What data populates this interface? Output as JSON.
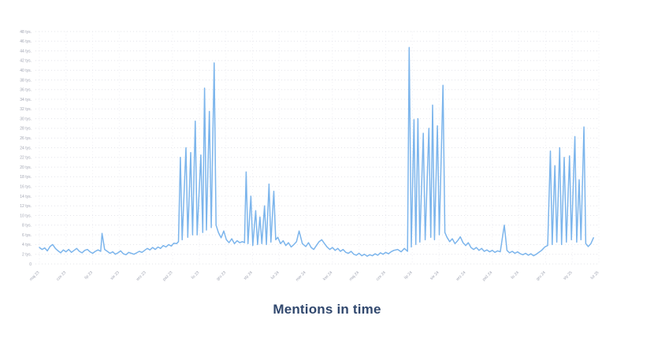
{
  "page": {
    "background": "#ffffff"
  },
  "title": {
    "text": "Mentions in time",
    "color": "#31486e"
  },
  "chart_data": {
    "type": "line",
    "title": "Mentions in time",
    "unit_suffix": " tys.",
    "line_color": "#7cb5ec",
    "grid": true,
    "legend": "none",
    "ylim": [
      0,
      48
    ],
    "y_tick_step": 2,
    "y_tick_labels": [
      "0",
      "2 tys.",
      "4 tys.",
      "6 tys.",
      "8 tys.",
      "10 tys.",
      "12 tys.",
      "14 tys.",
      "16 tys.",
      "18 tys.",
      "20 tys.",
      "22 tys.",
      "24 tys.",
      "26 tys.",
      "28 tys.",
      "30 tys.",
      "32 tys.",
      "34 tys.",
      "36 tys.",
      "38 tys.",
      "40 tys.",
      "42 tys.",
      "44 tys.",
      "46 tys.",
      "48 tys."
    ],
    "x_tick_labels": [
      "maj 23",
      "cze 23",
      "lip 23",
      "sie 23",
      "wrz 23",
      "paź 23",
      "lis 23",
      "gru 23",
      "sty 24",
      "lut 24",
      "mar 24",
      "kwi 24",
      "maj 24",
      "cze 24",
      "lip 24",
      "sie 24",
      "wrz 24",
      "paź 24",
      "lis 24",
      "gru 24",
      "sty 25",
      "lut 25"
    ],
    "x_unit": "month_index_from_first_label",
    "y_unit": "thousands_of_mentions",
    "points": [
      [
        0,
        3.4
      ],
      [
        0.1,
        3.0
      ],
      [
        0.2,
        3.3
      ],
      [
        0.3,
        2.7
      ],
      [
        0.4,
        3.6
      ],
      [
        0.5,
        4.0
      ],
      [
        0.6,
        3.2
      ],
      [
        0.7,
        2.7
      ],
      [
        0.8,
        2.3
      ],
      [
        0.9,
        2.9
      ],
      [
        1.0,
        2.5
      ],
      [
        1.1,
        3.0
      ],
      [
        1.2,
        2.4
      ],
      [
        1.3,
        2.8
      ],
      [
        1.4,
        3.2
      ],
      [
        1.5,
        2.6
      ],
      [
        1.6,
        2.3
      ],
      [
        1.7,
        2.8
      ],
      [
        1.8,
        3.0
      ],
      [
        1.9,
        2.5
      ],
      [
        2.0,
        2.2
      ],
      [
        2.1,
        2.6
      ],
      [
        2.2,
        2.9
      ],
      [
        2.3,
        2.6
      ],
      [
        2.35,
        6.3
      ],
      [
        2.45,
        3.0
      ],
      [
        2.55,
        2.6
      ],
      [
        2.65,
        2.2
      ],
      [
        2.75,
        2.5
      ],
      [
        2.85,
        2.0
      ],
      [
        2.95,
        2.3
      ],
      [
        3.05,
        2.7
      ],
      [
        3.15,
        2.1
      ],
      [
        3.25,
        1.9
      ],
      [
        3.35,
        2.4
      ],
      [
        3.45,
        2.2
      ],
      [
        3.55,
        2.0
      ],
      [
        3.65,
        2.3
      ],
      [
        3.75,
        2.6
      ],
      [
        3.85,
        2.4
      ],
      [
        3.95,
        2.8
      ],
      [
        4.05,
        3.2
      ],
      [
        4.15,
        2.9
      ],
      [
        4.25,
        3.4
      ],
      [
        4.35,
        3.0
      ],
      [
        4.45,
        3.5
      ],
      [
        4.55,
        3.2
      ],
      [
        4.65,
        3.8
      ],
      [
        4.75,
        3.5
      ],
      [
        4.85,
        4.0
      ],
      [
        4.95,
        3.7
      ],
      [
        5.05,
        4.3
      ],
      [
        5.15,
        4.2
      ],
      [
        5.22,
        4.6
      ],
      [
        5.29,
        22.0
      ],
      [
        5.36,
        5.0
      ],
      [
        5.5,
        24.0
      ],
      [
        5.57,
        5.5
      ],
      [
        5.68,
        23.0
      ],
      [
        5.75,
        6.0
      ],
      [
        5.85,
        29.5
      ],
      [
        5.92,
        6.0
      ],
      [
        6.06,
        22.5
      ],
      [
        6.13,
        6.5
      ],
      [
        6.2,
        36.3
      ],
      [
        6.27,
        7.0
      ],
      [
        6.38,
        31.5
      ],
      [
        6.45,
        7.5
      ],
      [
        6.56,
        41.5
      ],
      [
        6.63,
        8.0
      ],
      [
        6.72,
        6.5
      ],
      [
        6.82,
        5.4
      ],
      [
        6.92,
        6.8
      ],
      [
        7.02,
        5.0
      ],
      [
        7.12,
        4.4
      ],
      [
        7.22,
        5.2
      ],
      [
        7.32,
        4.2
      ],
      [
        7.42,
        4.8
      ],
      [
        7.52,
        4.4
      ],
      [
        7.62,
        4.6
      ],
      [
        7.7,
        4.4
      ],
      [
        7.76,
        19.0
      ],
      [
        7.83,
        4.2
      ],
      [
        7.94,
        14.0
      ],
      [
        8.01,
        3.8
      ],
      [
        8.12,
        11.0
      ],
      [
        8.19,
        4.0
      ],
      [
        8.28,
        9.7
      ],
      [
        8.35,
        4.2
      ],
      [
        8.45,
        12.0
      ],
      [
        8.52,
        4.0
      ],
      [
        8.62,
        16.5
      ],
      [
        8.69,
        4.5
      ],
      [
        8.8,
        15.0
      ],
      [
        8.87,
        5.0
      ],
      [
        8.95,
        5.5
      ],
      [
        9.05,
        4.2
      ],
      [
        9.15,
        4.8
      ],
      [
        9.25,
        3.8
      ],
      [
        9.35,
        4.4
      ],
      [
        9.45,
        3.5
      ],
      [
        9.55,
        4.0
      ],
      [
        9.65,
        4.6
      ],
      [
        9.75,
        6.8
      ],
      [
        9.87,
        4.2
      ],
      [
        10.0,
        3.6
      ],
      [
        10.1,
        4.4
      ],
      [
        10.2,
        3.4
      ],
      [
        10.3,
        3.0
      ],
      [
        10.4,
        3.8
      ],
      [
        10.5,
        4.6
      ],
      [
        10.6,
        5.0
      ],
      [
        10.7,
        4.2
      ],
      [
        10.8,
        3.5
      ],
      [
        10.9,
        3.0
      ],
      [
        11.0,
        3.4
      ],
      [
        11.1,
        2.8
      ],
      [
        11.2,
        3.2
      ],
      [
        11.3,
        2.6
      ],
      [
        11.4,
        3.0
      ],
      [
        11.5,
        2.4
      ],
      [
        11.6,
        2.2
      ],
      [
        11.7,
        2.6
      ],
      [
        11.8,
        2.0
      ],
      [
        11.9,
        1.8
      ],
      [
        12.0,
        2.2
      ],
      [
        12.1,
        1.7
      ],
      [
        12.2,
        2.0
      ],
      [
        12.3,
        1.6
      ],
      [
        12.4,
        1.9
      ],
      [
        12.5,
        1.7
      ],
      [
        12.6,
        2.1
      ],
      [
        12.7,
        1.8
      ],
      [
        12.8,
        2.3
      ],
      [
        12.9,
        2.0
      ],
      [
        13.0,
        2.4
      ],
      [
        13.1,
        2.1
      ],
      [
        13.2,
        2.5
      ],
      [
        13.3,
        2.8
      ],
      [
        13.45,
        3.0
      ],
      [
        13.58,
        2.5
      ],
      [
        13.7,
        3.2
      ],
      [
        13.82,
        2.6
      ],
      [
        13.88,
        44.7
      ],
      [
        13.96,
        3.5
      ],
      [
        14.06,
        29.8
      ],
      [
        14.13,
        4.0
      ],
      [
        14.21,
        30.0
      ],
      [
        14.28,
        4.5
      ],
      [
        14.41,
        27.0
      ],
      [
        14.48,
        5.0
      ],
      [
        14.62,
        28.0
      ],
      [
        14.69,
        5.5
      ],
      [
        14.76,
        32.8
      ],
      [
        14.83,
        5.0
      ],
      [
        14.94,
        28.5
      ],
      [
        15.01,
        6.0
      ],
      [
        15.15,
        36.9
      ],
      [
        15.22,
        6.5
      ],
      [
        15.3,
        5.5
      ],
      [
        15.4,
        4.6
      ],
      [
        15.5,
        5.2
      ],
      [
        15.6,
        4.2
      ],
      [
        15.7,
        4.8
      ],
      [
        15.8,
        5.6
      ],
      [
        15.9,
        4.4
      ],
      [
        16.0,
        3.8
      ],
      [
        16.1,
        4.4
      ],
      [
        16.2,
        3.4
      ],
      [
        16.3,
        3.0
      ],
      [
        16.4,
        3.4
      ],
      [
        16.5,
        2.8
      ],
      [
        16.6,
        3.2
      ],
      [
        16.7,
        2.6
      ],
      [
        16.8,
        2.9
      ],
      [
        16.9,
        2.5
      ],
      [
        17.0,
        2.8
      ],
      [
        17.1,
        2.4
      ],
      [
        17.2,
        2.7
      ],
      [
        17.3,
        2.5
      ],
      [
        17.45,
        8.0
      ],
      [
        17.55,
        2.8
      ],
      [
        17.65,
        2.3
      ],
      [
        17.75,
        2.6
      ],
      [
        17.85,
        2.2
      ],
      [
        17.95,
        2.5
      ],
      [
        18.05,
        2.1
      ],
      [
        18.15,
        1.9
      ],
      [
        18.25,
        2.2
      ],
      [
        18.35,
        1.8
      ],
      [
        18.45,
        2.1
      ],
      [
        18.55,
        1.7
      ],
      [
        18.65,
        2.0
      ],
      [
        18.75,
        2.4
      ],
      [
        18.85,
        2.8
      ],
      [
        18.97,
        3.5
      ],
      [
        19.08,
        3.8
      ],
      [
        19.18,
        23.3
      ],
      [
        19.25,
        4.0
      ],
      [
        19.35,
        20.3
      ],
      [
        19.42,
        4.5
      ],
      [
        19.53,
        24.0
      ],
      [
        19.6,
        4.0
      ],
      [
        19.7,
        22.0
      ],
      [
        19.78,
        4.5
      ],
      [
        19.9,
        22.3
      ],
      [
        19.97,
        5.0
      ],
      [
        20.1,
        26.3
      ],
      [
        20.17,
        4.5
      ],
      [
        20.26,
        17.4
      ],
      [
        20.33,
        5.0
      ],
      [
        20.44,
        28.3
      ],
      [
        20.51,
        4.2
      ],
      [
        20.6,
        3.6
      ],
      [
        20.7,
        4.2
      ],
      [
        20.8,
        5.4
      ]
    ]
  }
}
